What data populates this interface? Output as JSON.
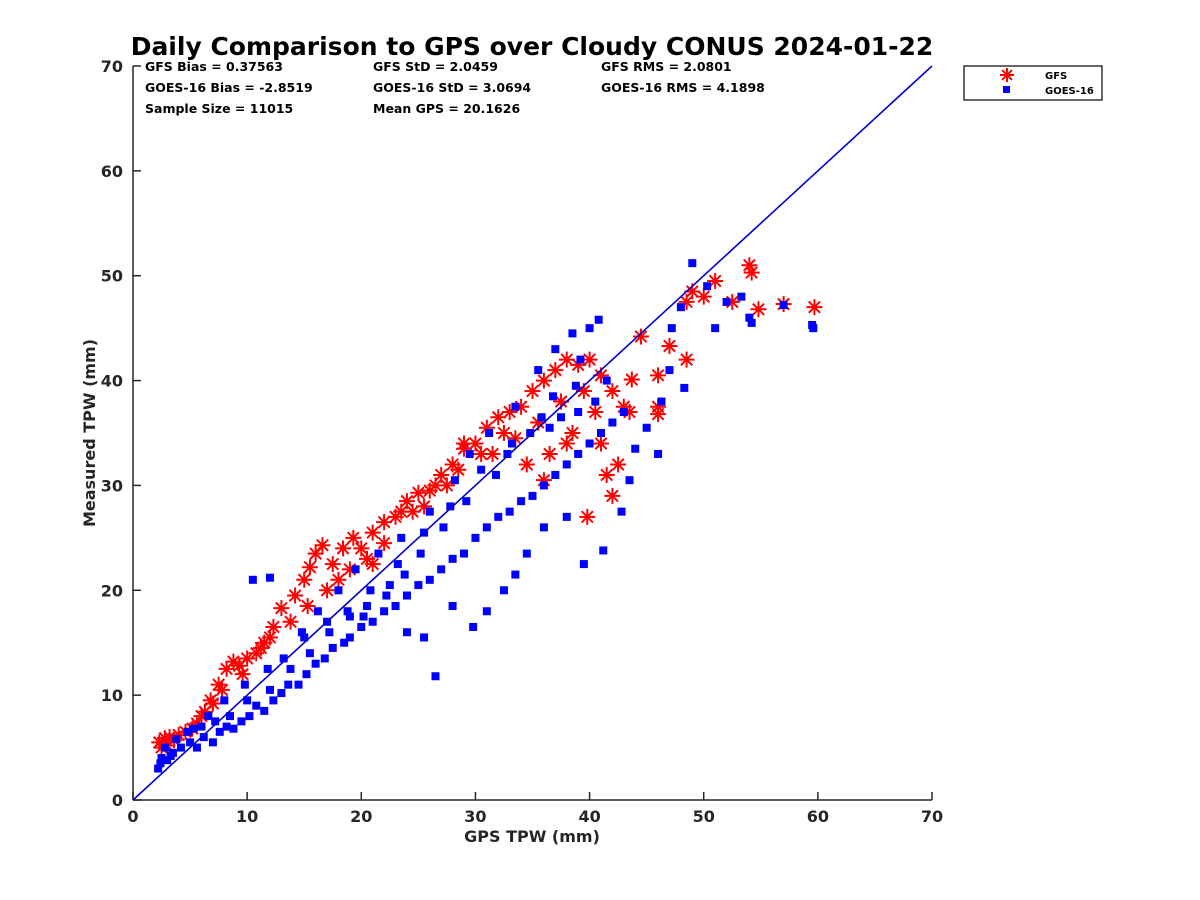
{
  "chart_data": {
    "type": "scatter",
    "title": "Daily Comparison to GPS over Cloudy CONUS 2024-01-22",
    "xlabel": "GPS TPW (mm)",
    "ylabel": "Measured TPW (mm)",
    "xlim": [
      0,
      70
    ],
    "ylim": [
      0,
      70
    ],
    "xticks": [
      "0",
      "10",
      "20",
      "30",
      "40",
      "50",
      "60",
      "70"
    ],
    "yticks": [
      "0",
      "10",
      "20",
      "30",
      "40",
      "50",
      "60",
      "70"
    ],
    "grid": false,
    "legend_position": "top-right, outside plot",
    "stats": [
      [
        "GFS Bias = 0.37563",
        "GFS StD = 2.0459",
        "GFS RMS = 2.0801"
      ],
      [
        "GOES-16 Bias = -2.8519",
        "GOES-16 StD = 3.0694",
        "GOES-16 RMS = 4.1898"
      ],
      [
        "Sample Size = 11015",
        "Mean GPS = 20.1626"
      ]
    ],
    "reference_line": {
      "x": [
        0,
        70
      ],
      "y": [
        0,
        70
      ],
      "color": "#0000cc"
    },
    "series": [
      {
        "name": "GFS",
        "marker": "asterisk",
        "color": "#ff0000",
        "points": [
          [
            2.3,
            5.5
          ],
          [
            2.8,
            5.9
          ],
          [
            3.2,
            6.0
          ],
          [
            3.6,
            5.7
          ],
          [
            4.0,
            6.2
          ],
          [
            5.2,
            6.8
          ],
          [
            6.0,
            8.0
          ],
          [
            6.8,
            9.5
          ],
          [
            7.5,
            11.0
          ],
          [
            8.2,
            12.5
          ],
          [
            8.8,
            13.2
          ],
          [
            9.3,
            12.8
          ],
          [
            10.0,
            13.5
          ],
          [
            10.8,
            14.0
          ],
          [
            11.5,
            15.0
          ],
          [
            12.3,
            16.5
          ],
          [
            13.0,
            18.3
          ],
          [
            14.2,
            19.5
          ],
          [
            15.0,
            21.0
          ],
          [
            15.5,
            22.2
          ],
          [
            16.0,
            23.5
          ],
          [
            16.6,
            24.3
          ],
          [
            17.5,
            22.5
          ],
          [
            18.4,
            24.0
          ],
          [
            19.3,
            25.0
          ],
          [
            20.0,
            24.0
          ],
          [
            21.0,
            25.5
          ],
          [
            22.0,
            26.5
          ],
          [
            23.0,
            27.0
          ],
          [
            24.0,
            28.5
          ],
          [
            25.0,
            29.3
          ],
          [
            26.0,
            29.5
          ],
          [
            27.0,
            31.0
          ],
          [
            28.0,
            32.0
          ],
          [
            29.0,
            33.5
          ],
          [
            30.0,
            34.0
          ],
          [
            31.0,
            35.5
          ],
          [
            32.0,
            36.5
          ],
          [
            33.0,
            37.0
          ],
          [
            34.0,
            37.5
          ],
          [
            35.0,
            39.0
          ],
          [
            36.0,
            40.0
          ],
          [
            37.0,
            41.0
          ],
          [
            38.0,
            42.0
          ],
          [
            39.0,
            41.5
          ],
          [
            40.0,
            42.0
          ],
          [
            41.0,
            40.5
          ],
          [
            42.0,
            39.0
          ],
          [
            43.0,
            37.5
          ],
          [
            43.5,
            37.0
          ],
          [
            42.5,
            32.0
          ],
          [
            41.5,
            31.0
          ],
          [
            42.0,
            29.0
          ],
          [
            39.8,
            27.0
          ],
          [
            38.0,
            34.0
          ],
          [
            36.5,
            33.0
          ],
          [
            44.5,
            44.2
          ],
          [
            47.0,
            43.3
          ],
          [
            48.5,
            42.0
          ],
          [
            46.0,
            40.5
          ],
          [
            43.7,
            40.1
          ],
          [
            46.0,
            37.5
          ],
          [
            46.0,
            36.8
          ],
          [
            48.5,
            47.5
          ],
          [
            49.0,
            48.5
          ],
          [
            50.0,
            48.0
          ],
          [
            51.0,
            49.5
          ],
          [
            52.5,
            47.5
          ],
          [
            54.0,
            51.0
          ],
          [
            54.2,
            50.3
          ],
          [
            54.8,
            46.8
          ],
          [
            57.0,
            47.3
          ],
          [
            59.7,
            47.0
          ],
          [
            35.5,
            36.0
          ],
          [
            33.5,
            34.5
          ],
          [
            31.5,
            33.0
          ],
          [
            29.0,
            34.0
          ],
          [
            27.5,
            30.0
          ],
          [
            25.5,
            28.0
          ],
          [
            23.5,
            27.5
          ],
          [
            22.0,
            24.5
          ],
          [
            21.0,
            22.5
          ],
          [
            19.0,
            22.0
          ],
          [
            18.0,
            21.0
          ],
          [
            17.0,
            20.0
          ],
          [
            15.3,
            18.5
          ],
          [
            13.8,
            17.0
          ],
          [
            12.0,
            15.5
          ],
          [
            11.2,
            14.5
          ],
          [
            9.6,
            12.0
          ],
          [
            7.8,
            10.5
          ],
          [
            7.0,
            9.2
          ],
          [
            6.3,
            8.4
          ],
          [
            5.6,
            7.3
          ],
          [
            4.6,
            6.5
          ],
          [
            3.0,
            5.2
          ],
          [
            2.5,
            5.0
          ],
          [
            37.5,
            38.0
          ],
          [
            39.5,
            39.0
          ],
          [
            40.5,
            37.0
          ],
          [
            38.5,
            35.0
          ],
          [
            41.0,
            34.0
          ],
          [
            36.0,
            30.5
          ],
          [
            34.5,
            32.0
          ],
          [
            32.5,
            35.0
          ],
          [
            30.5,
            33.0
          ],
          [
            28.5,
            31.5
          ],
          [
            26.5,
            30.0
          ],
          [
            24.5,
            27.5
          ],
          [
            20.5,
            23.0
          ]
        ]
      },
      {
        "name": "GOES-16",
        "marker": "square",
        "color": "#0000ff",
        "points": [
          [
            2.2,
            3.0
          ],
          [
            2.5,
            4.0
          ],
          [
            3.0,
            3.8
          ],
          [
            3.5,
            4.5
          ],
          [
            4.2,
            5.0
          ],
          [
            5.0,
            5.5
          ],
          [
            5.6,
            5.0
          ],
          [
            6.2,
            6.0
          ],
          [
            7.0,
            5.5
          ],
          [
            7.6,
            6.5
          ],
          [
            8.2,
            7.0
          ],
          [
            8.8,
            6.8
          ],
          [
            9.5,
            7.5
          ],
          [
            10.2,
            8.0
          ],
          [
            10.8,
            9.0
          ],
          [
            11.5,
            8.5
          ],
          [
            12.3,
            9.5
          ],
          [
            13.0,
            10.2
          ],
          [
            13.6,
            11.0
          ],
          [
            14.5,
            11.0
          ],
          [
            15.2,
            12.0
          ],
          [
            16.0,
            13.0
          ],
          [
            16.8,
            13.5
          ],
          [
            17.5,
            14.5
          ],
          [
            18.5,
            15.0
          ],
          [
            19.0,
            15.5
          ],
          [
            20.0,
            16.5
          ],
          [
            21.0,
            17.0
          ],
          [
            22.0,
            18.0
          ],
          [
            23.0,
            18.5
          ],
          [
            24.0,
            19.5
          ],
          [
            25.0,
            20.5
          ],
          [
            26.0,
            21.0
          ],
          [
            27.0,
            22.0
          ],
          [
            28.0,
            23.0
          ],
          [
            29.0,
            23.5
          ],
          [
            30.0,
            25.0
          ],
          [
            31.0,
            26.0
          ],
          [
            32.0,
            27.0
          ],
          [
            33.0,
            27.5
          ],
          [
            34.0,
            28.5
          ],
          [
            35.0,
            29.0
          ],
          [
            36.0,
            30.0
          ],
          [
            37.0,
            31.0
          ],
          [
            38.0,
            32.0
          ],
          [
            39.0,
            33.0
          ],
          [
            40.0,
            34.0
          ],
          [
            41.0,
            35.0
          ],
          [
            42.0,
            36.0
          ],
          [
            43.0,
            37.0
          ],
          [
            10.5,
            21.0
          ],
          [
            12.0,
            21.2
          ],
          [
            14.8,
            16.0
          ],
          [
            16.2,
            18.0
          ],
          [
            18.0,
            20.0
          ],
          [
            19.5,
            22.0
          ],
          [
            21.5,
            23.5
          ],
          [
            23.5,
            25.0
          ],
          [
            26.0,
            27.5
          ],
          [
            28.2,
            30.5
          ],
          [
            29.5,
            33.0
          ],
          [
            31.2,
            35.0
          ],
          [
            33.5,
            37.5
          ],
          [
            35.5,
            41.0
          ],
          [
            37.0,
            43.0
          ],
          [
            38.5,
            44.5
          ],
          [
            40.0,
            45.0
          ],
          [
            40.8,
            45.8
          ],
          [
            39.2,
            42.0
          ],
          [
            36.8,
            38.5
          ],
          [
            34.8,
            35.0
          ],
          [
            32.8,
            33.0
          ],
          [
            30.5,
            31.5
          ],
          [
            27.8,
            28.0
          ],
          [
            25.5,
            25.5
          ],
          [
            23.2,
            22.5
          ],
          [
            20.8,
            20.0
          ],
          [
            18.8,
            18.0
          ],
          [
            17.2,
            16.0
          ],
          [
            15.5,
            14.0
          ],
          [
            13.8,
            12.5
          ],
          [
            12.0,
            10.5
          ],
          [
            10.0,
            9.5
          ],
          [
            8.5,
            8.0
          ],
          [
            7.2,
            7.5
          ],
          [
            6.0,
            7.0
          ],
          [
            4.8,
            6.5
          ],
          [
            3.8,
            5.8
          ],
          [
            2.8,
            5.0
          ],
          [
            24.0,
            16.0
          ],
          [
            25.5,
            15.5
          ],
          [
            26.5,
            11.8
          ],
          [
            28.0,
            18.5
          ],
          [
            29.8,
            16.5
          ],
          [
            31.0,
            18.0
          ],
          [
            32.5,
            20.0
          ],
          [
            33.5,
            21.5
          ],
          [
            34.5,
            23.5
          ],
          [
            36.0,
            26.0
          ],
          [
            38.0,
            27.0
          ],
          [
            39.5,
            22.5
          ],
          [
            41.2,
            23.8
          ],
          [
            42.8,
            27.5
          ],
          [
            43.5,
            30.5
          ],
          [
            44.0,
            33.5
          ],
          [
            45.0,
            35.5
          ],
          [
            46.0,
            33.0
          ],
          [
            46.3,
            38.0
          ],
          [
            47.0,
            41.0
          ],
          [
            48.3,
            39.3
          ],
          [
            47.2,
            45.0
          ],
          [
            48.0,
            47.0
          ],
          [
            49.0,
            51.2
          ],
          [
            50.3,
            49.0
          ],
          [
            51.0,
            45.0
          ],
          [
            52.0,
            47.5
          ],
          [
            53.3,
            48.0
          ],
          [
            54.2,
            45.5
          ],
          [
            54.0,
            46.0
          ],
          [
            57.0,
            47.2
          ],
          [
            59.6,
            45.0
          ],
          [
            59.5,
            45.3
          ],
          [
            22.5,
            20.5
          ],
          [
            20.5,
            18.5
          ],
          [
            19.0,
            17.5
          ],
          [
            17.0,
            17.0
          ],
          [
            15.0,
            15.5
          ],
          [
            13.2,
            13.5
          ],
          [
            11.8,
            12.5
          ],
          [
            9.8,
            11.0
          ],
          [
            8.0,
            9.5
          ],
          [
            6.6,
            8.0
          ],
          [
            5.3,
            6.8
          ],
          [
            3.3,
            4.2
          ],
          [
            2.4,
            3.5
          ],
          [
            36.5,
            35.5
          ],
          [
            37.5,
            36.5
          ],
          [
            39.0,
            37.0
          ],
          [
            40.5,
            38.0
          ],
          [
            41.5,
            40.0
          ],
          [
            38.8,
            39.5
          ],
          [
            35.8,
            36.5
          ],
          [
            33.2,
            34.0
          ],
          [
            31.8,
            31.0
          ],
          [
            29.2,
            28.5
          ],
          [
            27.2,
            26.0
          ],
          [
            25.2,
            23.5
          ],
          [
            23.8,
            21.5
          ],
          [
            22.2,
            19.5
          ],
          [
            20.2,
            17.5
          ]
        ]
      }
    ]
  },
  "legend": [
    {
      "label": "GFS",
      "marker": "asterisk",
      "color": "#ff0000"
    },
    {
      "label": "GOES-16",
      "marker": "square",
      "color": "#0000ff"
    }
  ]
}
